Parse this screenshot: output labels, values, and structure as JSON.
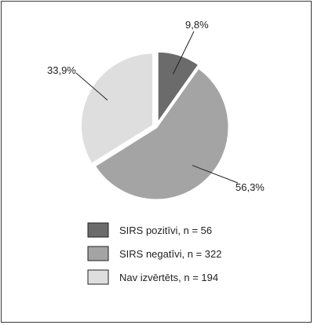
{
  "chart_data": {
    "type": "pie",
    "title": "",
    "slices": [
      {
        "label": "SIRS pozitīvi, n = 56",
        "value": 9.8,
        "value_label": "9,8%",
        "color": "#6b6b6b"
      },
      {
        "label": "SIRS negatīvi, n = 322",
        "value": 56.3,
        "value_label": "56,3%",
        "color": "#a4a4a4"
      },
      {
        "label": "Nav izvērtēts, n = 194",
        "value": 33.9,
        "value_label": "33,9%",
        "color": "#dedede"
      }
    ],
    "legend_position": "bottom"
  }
}
